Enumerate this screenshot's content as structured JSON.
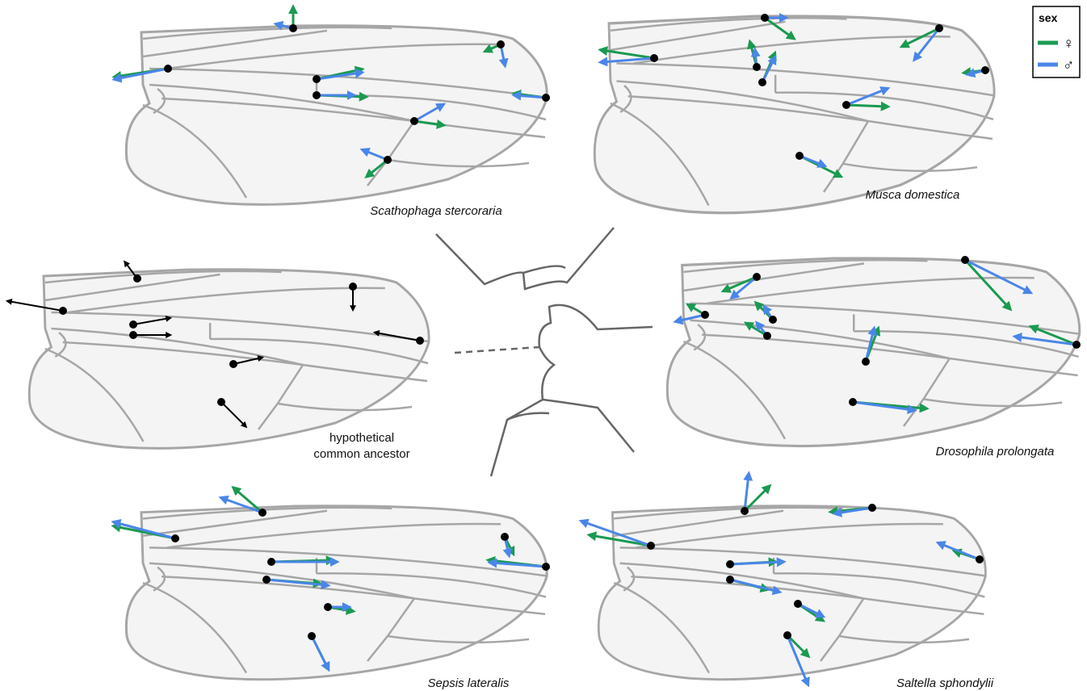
{
  "wings": [
    {
      "label": "Scathophaga stercoraria"
    },
    {
      "label": "Musca domestica"
    },
    {
      "label": "Drosophila prolongata"
    },
    {
      "label": "Sepsis lateralis"
    },
    {
      "label": "Saltella sphondylii"
    }
  ],
  "ancestor": {
    "label_lines": [
      "hypothetical",
      "common ancestor"
    ]
  },
  "legend": {
    "title": "sex",
    "items": [
      "♀",
      "♂"
    ]
  }
}
